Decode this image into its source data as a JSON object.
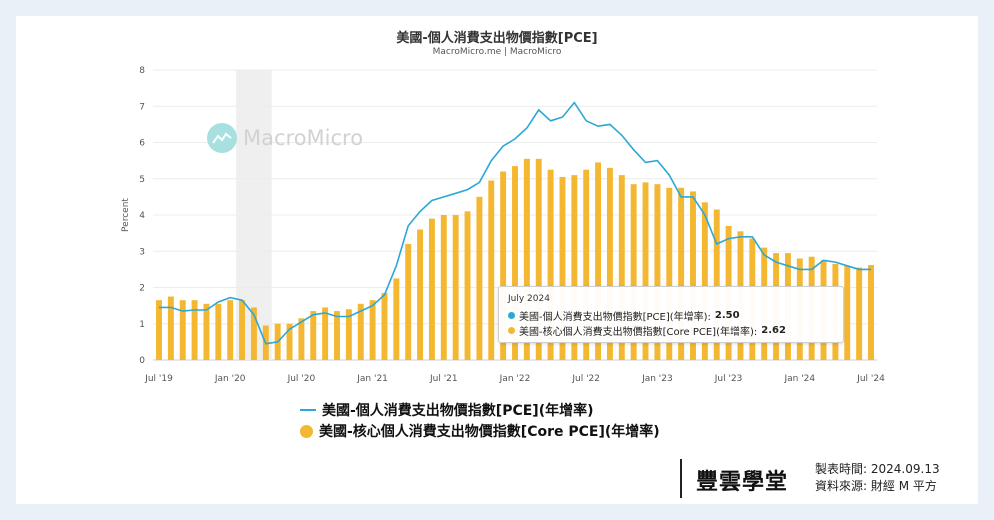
{
  "chart_data": {
    "type": "bar",
    "title": "美國-個人消費支出物價指數[PCE]",
    "subtitle": "MacroMicro.me | MacroMicro",
    "ylabel": "Percent",
    "ylim": [
      0,
      8
    ],
    "yticks": [
      "0",
      "1",
      "2",
      "3",
      "4",
      "5",
      "6",
      "7",
      "8"
    ],
    "xtick_labels": [
      {
        "label": "Jul '19",
        "index": 0
      },
      {
        "label": "Jan '20",
        "index": 6
      },
      {
        "label": "Jul '20",
        "index": 12
      },
      {
        "label": "Jan '21",
        "index": 18
      },
      {
        "label": "Jul '21",
        "index": 24
      },
      {
        "label": "Jan '22",
        "index": 30
      },
      {
        "label": "Jul '22",
        "index": 36
      },
      {
        "label": "Jan '23",
        "index": 42
      },
      {
        "label": "Jul '23",
        "index": 48
      },
      {
        "label": "Jan '24",
        "index": 54
      },
      {
        "label": "Jul '24",
        "index": 60
      }
    ],
    "categories": [
      "2019-07",
      "2019-08",
      "2019-09",
      "2019-10",
      "2019-11",
      "2019-12",
      "2020-01",
      "2020-02",
      "2020-03",
      "2020-04",
      "2020-05",
      "2020-06",
      "2020-07",
      "2020-08",
      "2020-09",
      "2020-10",
      "2020-11",
      "2020-12",
      "2021-01",
      "2021-02",
      "2021-03",
      "2021-04",
      "2021-05",
      "2021-06",
      "2021-07",
      "2021-08",
      "2021-09",
      "2021-10",
      "2021-11",
      "2021-12",
      "2022-01",
      "2022-02",
      "2022-03",
      "2022-04",
      "2022-05",
      "2022-06",
      "2022-07",
      "2022-08",
      "2022-09",
      "2022-10",
      "2022-11",
      "2022-12",
      "2023-01",
      "2023-02",
      "2023-03",
      "2023-04",
      "2023-05",
      "2023-06",
      "2023-07",
      "2023-08",
      "2023-09",
      "2023-10",
      "2023-11",
      "2023-12",
      "2024-01",
      "2024-02",
      "2024-03",
      "2024-04",
      "2024-05",
      "2024-06",
      "2024-07"
    ],
    "recession_shade": {
      "from": "2020-02",
      "to": "2020-04"
    },
    "series": [
      {
        "name": "美國-個人消費支出物價指數[PCE](年增率)",
        "type": "line",
        "color": "#2ba8d8",
        "values": [
          1.45,
          1.45,
          1.35,
          1.38,
          1.38,
          1.6,
          1.72,
          1.65,
          1.25,
          0.45,
          0.5,
          0.85,
          1.05,
          1.25,
          1.3,
          1.2,
          1.2,
          1.35,
          1.5,
          1.8,
          2.6,
          3.7,
          4.1,
          4.4,
          4.5,
          4.6,
          4.7,
          4.9,
          5.5,
          5.9,
          6.1,
          6.4,
          6.9,
          6.6,
          6.7,
          7.1,
          6.6,
          6.45,
          6.5,
          6.2,
          5.8,
          5.45,
          5.5,
          5.1,
          4.5,
          4.5,
          4.0,
          3.2,
          3.35,
          3.4,
          3.4,
          2.9,
          2.7,
          2.6,
          2.5,
          2.5,
          2.75,
          2.7,
          2.6,
          2.5,
          2.5
        ]
      },
      {
        "name": "美國-核心個人消費支出物價指數[Core PCE](年增率)",
        "type": "bar",
        "color": "#f4b731",
        "values": [
          1.65,
          1.75,
          1.65,
          1.65,
          1.55,
          1.55,
          1.65,
          1.65,
          1.45,
          0.95,
          1.0,
          1.0,
          1.15,
          1.35,
          1.45,
          1.35,
          1.4,
          1.55,
          1.65,
          1.85,
          2.25,
          3.2,
          3.6,
          3.9,
          4.0,
          4.0,
          4.1,
          4.5,
          4.95,
          5.2,
          5.35,
          5.55,
          5.55,
          5.25,
          5.05,
          5.1,
          5.25,
          5.45,
          5.3,
          5.1,
          4.85,
          4.9,
          4.85,
          4.75,
          4.75,
          4.65,
          4.35,
          4.15,
          3.7,
          3.55,
          3.35,
          3.1,
          2.95,
          2.95,
          2.8,
          2.85,
          2.75,
          2.65,
          2.6,
          2.55,
          2.62
        ]
      }
    ],
    "tooltip": {
      "date": "July 2024",
      "rows": [
        {
          "label": "美國-個人消費支出物價指數[PCE](年增率):",
          "value": "2.50",
          "color": "#2ba8d8"
        },
        {
          "label": "美國-核心個人消費支出物價指數[Core PCE](年增率):",
          "value": "2.62",
          "color": "#f4b731"
        }
      ]
    },
    "legend": [
      {
        "label": "美國-個人消費支出物價指數[PCE](年增率)",
        "marker": "line",
        "color": "#2ba8d8"
      },
      {
        "label": "美國-核心個人消費支出物價指數[Core PCE](年增率)",
        "marker": "dot",
        "color": "#f4b731"
      }
    ],
    "watermark": "MacroMicro"
  },
  "footer": {
    "brand": "豐雲學堂",
    "made_time_label": "製表時間:",
    "made_time_value": "2024.09.13",
    "source_label": "資料來源:",
    "source_value": "財經 M 平方"
  }
}
